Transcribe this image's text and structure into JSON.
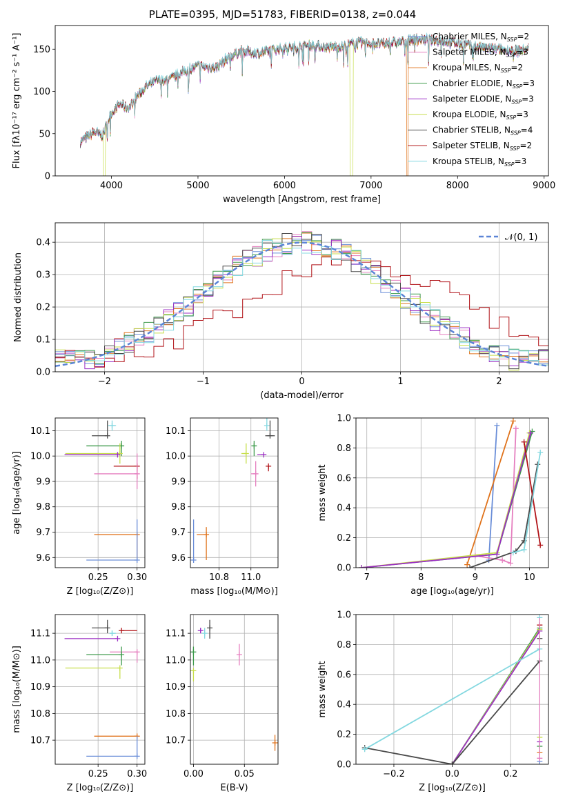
{
  "title": "PLATE=0395, MJD=51783, FIBERID=0138, z=0.044",
  "colors": {
    "Chabrier MILES": "#6a8ed8",
    "Salpeter MILES": "#e57fbf",
    "Kroupa MILES": "#e0731c",
    "Chabrier ELODIE": "#3e9a4c",
    "Salpeter ELODIE": "#9c2fc4",
    "Kroupa ELODIE": "#c7de4c",
    "Chabrier STELIB": "#4a4a4a",
    "Salpeter STELIB": "#b01217",
    "Kroupa STELIB": "#84d8e0"
  },
  "chart_data": [
    {
      "id": "spectrum",
      "type": "line",
      "xlabel": "wavelength [Angstrom, rest frame]",
      "ylabel": "Flux [fλ10⁻¹⁷ erg cm⁻² s⁻¹ A⁻¹]",
      "xlim": [
        3350,
        9050
      ],
      "ylim": [
        0,
        178
      ],
      "xticks": [
        4000,
        5000,
        6000,
        7000,
        8000,
        9000
      ],
      "yticks": [
        0,
        50,
        100,
        150
      ],
      "legend_location": "top-right",
      "legend": [
        "Chabrier MILES, N_SSP=2",
        "Salpeter MILES, N_SSP=3",
        "Kroupa MILES, N_SSP=2",
        "Chabrier ELODIE, N_SSP=3",
        "Salpeter ELODIE, N_SSP=3",
        "Kroupa ELODIE, N_SSP=3",
        "Chabrier STELIB, N_SSP=4",
        "Salpeter STELIB, N_SSP=2",
        "Kroupa STELIB, N_SSP=3"
      ],
      "continuum": [
        [
          3640,
          40
        ],
        [
          3800,
          52
        ],
        [
          3900,
          48
        ],
        [
          4000,
          75
        ],
        [
          4100,
          85
        ],
        [
          4200,
          80
        ],
        [
          4300,
          95
        ],
        [
          4400,
          105
        ],
        [
          4500,
          112
        ],
        [
          4700,
          115
        ],
        [
          4860,
          125
        ],
        [
          5000,
          130
        ],
        [
          5200,
          128
        ],
        [
          5350,
          140
        ],
        [
          5500,
          148
        ],
        [
          5700,
          145
        ],
        [
          5900,
          150
        ],
        [
          6100,
          152
        ],
        [
          6300,
          155
        ],
        [
          6500,
          152
        ],
        [
          6700,
          154
        ],
        [
          6900,
          158
        ],
        [
          7100,
          156
        ],
        [
          7300,
          158
        ],
        [
          7500,
          162
        ],
        [
          7800,
          160
        ],
        [
          8100,
          155
        ],
        [
          8400,
          150
        ],
        [
          8700,
          148
        ],
        [
          8820,
          150
        ]
      ],
      "dropouts": [
        {
          "name": "Kroupa ELODIE",
          "x": [
            3910,
            3930
          ]
        },
        {
          "name": "Kroupa ELODIE",
          "x": [
            6760,
            6790
          ]
        },
        {
          "name": "Kroupa MILES",
          "x": [
            7410,
            7430
          ]
        }
      ]
    },
    {
      "id": "residuals",
      "type": "histogram",
      "xlabel": "(data-model)/error",
      "ylabel": "Normed distribution",
      "xlim": [
        -2.5,
        2.5
      ],
      "ylim": [
        0,
        0.46
      ],
      "xticks": [
        -2,
        -1,
        0,
        1,
        2
      ],
      "yticks": [
        0.0,
        0.1,
        0.2,
        0.3,
        0.4
      ],
      "grid": true,
      "legend": [
        "𝒩(0, 1)"
      ],
      "legend_location": "top-right",
      "bin_width": 0.1
    },
    {
      "id": "Z-age",
      "type": "errorbar",
      "xlabel": "Z [log₁₀(Z/Z⊙)]",
      "ylabel": "age  [log₁₀(age/yr)]",
      "xlim": [
        0.195,
        0.31
      ],
      "ylim": [
        9.56,
        10.15
      ],
      "xticks": [
        0.25,
        0.3
      ],
      "yticks": [
        9.6,
        9.7,
        9.8,
        9.9,
        10.0,
        10.1
      ],
      "grid": true,
      "points": [
        {
          "name": "Kroupa STELIB",
          "x": 0.268,
          "y": 10.12,
          "xe": [
            0.005,
            0.005
          ],
          "ye": [
            0.02,
            0.02
          ]
        },
        {
          "name": "Chabrier STELIB",
          "x": 0.262,
          "y": 10.08,
          "xe": [
            0.02,
            0.0
          ],
          "ye": [
            0.0,
            0.06
          ]
        },
        {
          "name": "Chabrier ELODIE",
          "x": 0.28,
          "y": 10.04,
          "xe": [
            0.045,
            0.0
          ],
          "ye": [
            0.04,
            0.02
          ]
        },
        {
          "name": "Kroupa ELODIE",
          "x": 0.278,
          "y": 10.01,
          "xe": [
            0.07,
            0.0
          ],
          "ye": [
            0.04,
            0.04
          ]
        },
        {
          "name": "Salpeter ELODIE",
          "x": 0.275,
          "y": 10.005,
          "xe": [
            0.068,
            0.0
          ],
          "ye": [
            0.0,
            0.0
          ]
        },
        {
          "name": "Salpeter STELIB",
          "x": 0.3,
          "y": 9.96,
          "xe": [
            0.03,
            0.0
          ],
          "ye": [
            0.05,
            0.0
          ]
        },
        {
          "name": "Salpeter MILES",
          "x": 0.3,
          "y": 9.93,
          "xe": [
            0.055,
            0.0
          ],
          "ye": [
            0.06,
            0.08
          ]
        },
        {
          "name": "Kroupa MILES",
          "x": 0.3,
          "y": 9.69,
          "xe": [
            0.055,
            0.0
          ],
          "ye": [
            0.1,
            0.0
          ]
        },
        {
          "name": "Chabrier MILES",
          "x": 0.3,
          "y": 9.59,
          "xe": [
            0.065,
            0.0
          ],
          "ye": [
            0.0,
            0.16
          ]
        }
      ]
    },
    {
      "id": "mass-age",
      "type": "errorbar",
      "xlabel": "mass [log₁₀(M/M⊙)]",
      "xlim": [
        10.62,
        11.17
      ],
      "ylim": [
        9.56,
        10.15
      ],
      "xticks": [
        10.8,
        11.0
      ],
      "yticks": [
        9.6,
        9.7,
        9.8,
        9.9,
        10.0,
        10.1
      ],
      "grid": true,
      "points": [
        {
          "name": "Kroupa STELIB",
          "x": 11.1,
          "y": 10.12,
          "xe": [
            0.0,
            0.0
          ],
          "ye": [
            0.02,
            0.03
          ]
        },
        {
          "name": "Chabrier STELIB",
          "x": 11.12,
          "y": 10.08,
          "xe": [
            0.03,
            0.03
          ],
          "ye": [
            0.0,
            0.06
          ]
        },
        {
          "name": "Chabrier ELODIE",
          "x": 11.02,
          "y": 10.04,
          "xe": [
            0.0,
            0.0
          ],
          "ye": [
            0.04,
            0.02
          ]
        },
        {
          "name": "Kroupa ELODIE",
          "x": 10.97,
          "y": 10.01,
          "xe": [
            0.03,
            0.0
          ],
          "ye": [
            0.04,
            0.04
          ]
        },
        {
          "name": "Salpeter ELODIE",
          "x": 11.08,
          "y": 10.005,
          "xe": [
            0.04,
            0.0
          ],
          "ye": [
            0.0,
            0.0
          ]
        },
        {
          "name": "Salpeter STELIB",
          "x": 11.11,
          "y": 9.96,
          "xe": [
            0.0,
            0.0
          ],
          "ye": [
            0.02,
            0.0
          ]
        },
        {
          "name": "Salpeter MILES",
          "x": 11.03,
          "y": 9.93,
          "xe": [
            0.03,
            0.0
          ],
          "ye": [
            0.05,
            0.05
          ]
        },
        {
          "name": "Kroupa MILES",
          "x": 10.72,
          "y": 9.69,
          "xe": [
            0.06,
            0.0
          ],
          "ye": [
            0.1,
            0.03
          ]
        },
        {
          "name": "Chabrier MILES",
          "x": 10.64,
          "y": 9.59,
          "xe": [
            0.0,
            0.0
          ],
          "ye": [
            0.0,
            0.16
          ]
        }
      ]
    },
    {
      "id": "age-weight",
      "type": "line",
      "xlabel": "age  [log₁₀(age/yr)]",
      "ylabel": "mass weight",
      "xlim": [
        6.8,
        10.35
      ],
      "ylim": [
        0,
        1
      ],
      "xticks": [
        7,
        8,
        9,
        10
      ],
      "yticks": [
        0.0,
        0.2,
        0.4,
        0.6,
        0.8,
        1.0
      ],
      "grid": true,
      "series": [
        {
          "name": "Chabrier MILES",
          "x": [
            9.25,
            9.4
          ],
          "y": [
            0.05,
            0.95
          ]
        },
        {
          "name": "Kroupa MILES",
          "x": [
            8.85,
            9.7
          ],
          "y": [
            0.02,
            0.98
          ]
        },
        {
          "name": "Salpeter MILES",
          "x": [
            9.0,
            9.5,
            9.65,
            9.75
          ],
          "y": [
            0.08,
            0.05,
            0.03,
            0.93
          ]
        },
        {
          "name": "Chabrier ELODIE",
          "x": [
            6.9,
            9.4,
            10.05
          ],
          "y": [
            0.0,
            0.09,
            0.91
          ]
        },
        {
          "name": "Kroupa ELODIE",
          "x": [
            6.9,
            9.4,
            10.0
          ],
          "y": [
            0.0,
            0.1,
            0.9
          ]
        },
        {
          "name": "Salpeter ELODIE",
          "x": [
            6.9,
            9.4,
            10.02
          ],
          "y": [
            0.0,
            0.09,
            0.9
          ]
        },
        {
          "name": "Chabrier STELIB",
          "x": [
            8.9,
            9.75,
            9.9,
            10.15
          ],
          "y": [
            0.0,
            0.11,
            0.18,
            0.69
          ]
        },
        {
          "name": "Salpeter STELIB",
          "x": [
            9.9,
            10.2
          ],
          "y": [
            0.84,
            0.15
          ]
        },
        {
          "name": "Kroupa STELIB",
          "x": [
            9.7,
            9.9,
            10.2
          ],
          "y": [
            0.1,
            0.12,
            0.77
          ]
        }
      ]
    },
    {
      "id": "Z-mass",
      "type": "errorbar",
      "xlabel": "Z [log₁₀(Z/Z⊙)]",
      "ylabel": "mass [log₁₀(M/M⊙)]",
      "xlim": [
        0.195,
        0.31
      ],
      "ylim": [
        10.61,
        11.17
      ],
      "xticks": [
        0.25,
        0.3
      ],
      "yticks": [
        10.7,
        10.8,
        10.9,
        11.0,
        11.1
      ],
      "grid": true,
      "points": [
        {
          "name": "Chabrier STELIB",
          "x": 0.262,
          "y": 11.12,
          "xe": [
            0.02,
            0.0
          ],
          "ye": [
            0.02,
            0.03
          ]
        },
        {
          "name": "Salpeter STELIB",
          "x": 0.28,
          "y": 11.11,
          "xe": [
            0.0,
            0.02
          ],
          "ye": [
            0.0,
            0.0
          ]
        },
        {
          "name": "Kroupa STELIB",
          "x": 0.268,
          "y": 11.1,
          "xe": [
            0.003,
            0.005
          ],
          "ye": [
            0.01,
            0.01
          ]
        },
        {
          "name": "Salpeter ELODIE",
          "x": 0.275,
          "y": 11.08,
          "xe": [
            0.068,
            0.0
          ],
          "ye": [
            0.0,
            0.0
          ]
        },
        {
          "name": "Salpeter MILES",
          "x": 0.3,
          "y": 11.03,
          "xe": [
            0.035,
            0.0
          ],
          "ye": [
            0.04,
            0.0
          ]
        },
        {
          "name": "Chabrier ELODIE",
          "x": 0.28,
          "y": 11.02,
          "xe": [
            0.045,
            0.0
          ],
          "ye": [
            0.04,
            0.03
          ]
        },
        {
          "name": "Kroupa ELODIE",
          "x": 0.278,
          "y": 10.97,
          "xe": [
            0.07,
            0.0
          ],
          "ye": [
            0.04,
            0.0
          ]
        },
        {
          "name": "Kroupa MILES",
          "x": 0.3,
          "y": 10.715,
          "xe": [
            0.055,
            0.0
          ],
          "ye": [
            0.0,
            0.0
          ]
        },
        {
          "name": "Chabrier MILES",
          "x": 0.3,
          "y": 10.64,
          "xe": [
            0.065,
            0.0
          ],
          "ye": [
            0.0,
            0.075
          ]
        }
      ]
    },
    {
      "id": "ebv-mass",
      "type": "errorbar",
      "xlabel": "E(B-V)",
      "xlim": [
        -0.003,
        0.083
      ],
      "ylim": [
        10.61,
        11.17
      ],
      "xticks": [
        0.0,
        0.05
      ],
      "yticks": [
        10.7,
        10.8,
        10.9,
        11.0,
        11.1
      ],
      "grid": true,
      "points": [
        {
          "name": "Chabrier STELIB",
          "x": 0.016,
          "y": 11.12,
          "xe": [
            0.0,
            0.0
          ],
          "ye": [
            0.04,
            0.03
          ]
        },
        {
          "name": "Kroupa STELIB",
          "x": 0.011,
          "y": 11.1,
          "xe": [
            0.0,
            0.0
          ],
          "ye": [
            0.02,
            0.02
          ]
        },
        {
          "name": "Salpeter ELODIE",
          "x": 0.007,
          "y": 11.11,
          "xe": [
            0.0,
            0.0
          ],
          "ye": [
            0.01,
            0.01
          ]
        },
        {
          "name": "Salpeter MILES",
          "x": 0.045,
          "y": 11.02,
          "xe": [
            0.0,
            0.0
          ],
          "ye": [
            0.04,
            0.04
          ]
        },
        {
          "name": "Chabrier ELODIE",
          "x": 0.0,
          "y": 11.03,
          "xe": [
            0.0,
            0.0
          ],
          "ye": [
            0.05,
            0.02
          ]
        },
        {
          "name": "Kroupa ELODIE",
          "x": 0.0,
          "y": 10.96,
          "xe": [
            0.0,
            0.0
          ],
          "ye": [
            0.04,
            0.0
          ]
        },
        {
          "name": "Kroupa MILES",
          "x": 0.08,
          "y": 10.69,
          "xe": [
            0.0,
            0.0
          ],
          "ye": [
            0.03,
            0.03
          ]
        }
      ]
    },
    {
      "id": "Z-weight",
      "type": "line",
      "xlabel": "Z [log₁₀(Z/Z⊙)]",
      "ylabel": "mass weight",
      "xlim": [
        -0.33,
        0.33
      ],
      "ylim": [
        0,
        1
      ],
      "xticks": [
        -0.2,
        0.0,
        0.2
      ],
      "yticks": [
        0.0,
        0.2,
        0.4,
        0.6,
        0.8,
        1.0
      ],
      "grid": true,
      "series": [
        {
          "name": "Chabrier ELODIE",
          "x": [
            0.0,
            0.3
          ],
          "y": [
            0.0,
            0.91
          ]
        },
        {
          "name": "Kroupa ELODIE",
          "x": [
            0.0,
            0.3
          ],
          "y": [
            0.0,
            0.9
          ]
        },
        {
          "name": "Salpeter ELODIE",
          "x": [
            0.0,
            0.3
          ],
          "y": [
            0.0,
            0.89
          ]
        },
        {
          "name": "Chabrier STELIB",
          "x": [
            -0.3,
            0.0,
            0.3
          ],
          "y": [
            0.11,
            0.0,
            0.69
          ]
        },
        {
          "name": "Kroupa STELIB",
          "x": [
            -0.3,
            0.3
          ],
          "y": [
            0.1,
            0.77
          ]
        }
      ],
      "stacked_markers": {
        "x": 0.3,
        "y": [
          0.02,
          0.04,
          0.08,
          0.12,
          0.15,
          0.18,
          0.84,
          0.93,
          0.98
        ]
      }
    }
  ]
}
